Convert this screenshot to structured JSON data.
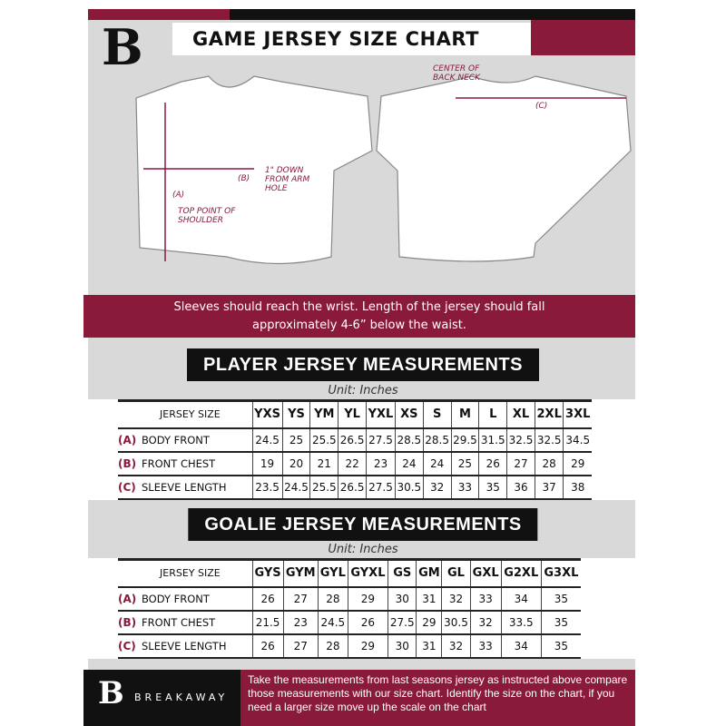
{
  "header": {
    "title": "GAME JERSEY SIZE CHART",
    "logo": "B"
  },
  "diagram": {
    "top_point": "TOP POINT OF SHOULDER",
    "label_a": "(A)",
    "label_b": "(B)",
    "arm_hole": "1\" DOWN FROM ARM HOLE",
    "back_neck": "CENTER OF BACK NECK",
    "label_c": "(C)"
  },
  "banner": {
    "line1": "Sleeves should reach the wrist. Length of the jersey should fall",
    "line2": "approximately 4-6” below the waist."
  },
  "player": {
    "title": "PLAYER JERSEY MEASUREMENTS",
    "unit": "Unit: Inches",
    "header": "JERSEY SIZE",
    "sizes": [
      "YXS",
      "YS",
      "YM",
      "YL",
      "YXL",
      "XS",
      "S",
      "M",
      "L",
      "XL",
      "2XL",
      "3XL"
    ],
    "rows": [
      {
        "letter": "(A)",
        "label": "BODY FRONT",
        "values": [
          "24.5",
          "25",
          "25.5",
          "26.5",
          "27.5",
          "28.5",
          "28.5",
          "29.5",
          "31.5",
          "32.5",
          "32.5",
          "34.5"
        ]
      },
      {
        "letter": "(B)",
        "label": "FRONT CHEST",
        "values": [
          "19",
          "20",
          "21",
          "22",
          "23",
          "24",
          "24",
          "25",
          "26",
          "27",
          "28",
          "29"
        ]
      },
      {
        "letter": "(C)",
        "label": "SLEEVE LENGTH",
        "values": [
          "23.5",
          "24.5",
          "25.5",
          "26.5",
          "27.5",
          "30.5",
          "32",
          "33",
          "35",
          "36",
          "37",
          "38"
        ]
      }
    ]
  },
  "goalie": {
    "title": "GOALIE JERSEY MEASUREMENTS",
    "unit": "Unit: Inches",
    "header": "JERSEY SIZE",
    "sizes": [
      "GYS",
      "GYM",
      "GYL",
      "GYXL",
      "GS",
      "GM",
      "GL",
      "GXL",
      "G2XL",
      "G3XL"
    ],
    "rows": [
      {
        "letter": "(A)",
        "label": "BODY FRONT",
        "values": [
          "26",
          "27",
          "28",
          "29",
          "30",
          "31",
          "32",
          "33",
          "34",
          "35"
        ]
      },
      {
        "letter": "(B)",
        "label": "FRONT CHEST",
        "values": [
          "21.5",
          "23",
          "24.5",
          "26",
          "27.5",
          "29",
          "30.5",
          "32",
          "33.5",
          "35"
        ]
      },
      {
        "letter": "(C)",
        "label": "SLEEVE LENGTH",
        "values": [
          "26",
          "27",
          "28",
          "29",
          "30",
          "31",
          "32",
          "33",
          "34",
          "35"
        ]
      }
    ]
  },
  "footer": {
    "brand": "BREAKAWAY",
    "note": "Take the measurements from last seasons jersey as instructed above compare those measurements  with our size chart. Identify the size on the chart, if you need a larger size move up the scale on the chart"
  },
  "colors": {
    "maroon": "#8a1a3a",
    "black": "#111111",
    "panel": "#d9d9d9"
  }
}
